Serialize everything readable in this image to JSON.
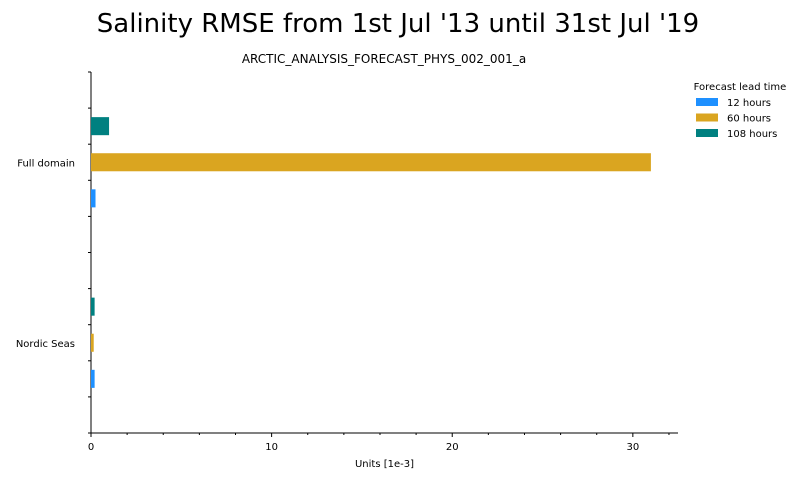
{
  "chart_data": {
    "type": "bar",
    "orientation": "horizontal",
    "title": "Salinity RMSE from 1st Jul '13 until 31st Jul '19",
    "subtitle": "ARCTIC_ANALYSIS_FORECAST_PHYS_002_001_a",
    "xlabel": "Units [1e-3]",
    "ylabel": "",
    "categories": [
      "Full domain",
      "Nordic Seas"
    ],
    "xlim": [
      0,
      32.5
    ],
    "xticks": [
      0,
      10,
      20,
      30
    ],
    "legend_title": "Forecast lead time",
    "legend_position": "top-right outside",
    "grid": false,
    "series": [
      {
        "name": "12 hours",
        "color": "#1e90ff",
        "values": [
          0.25,
          0.2
        ]
      },
      {
        "name": "60 hours",
        "color": "#daa520",
        "values": [
          31.0,
          0.15
        ]
      },
      {
        "name": "108 hours",
        "color": "#008080",
        "values": [
          1.0,
          0.2
        ]
      }
    ]
  }
}
